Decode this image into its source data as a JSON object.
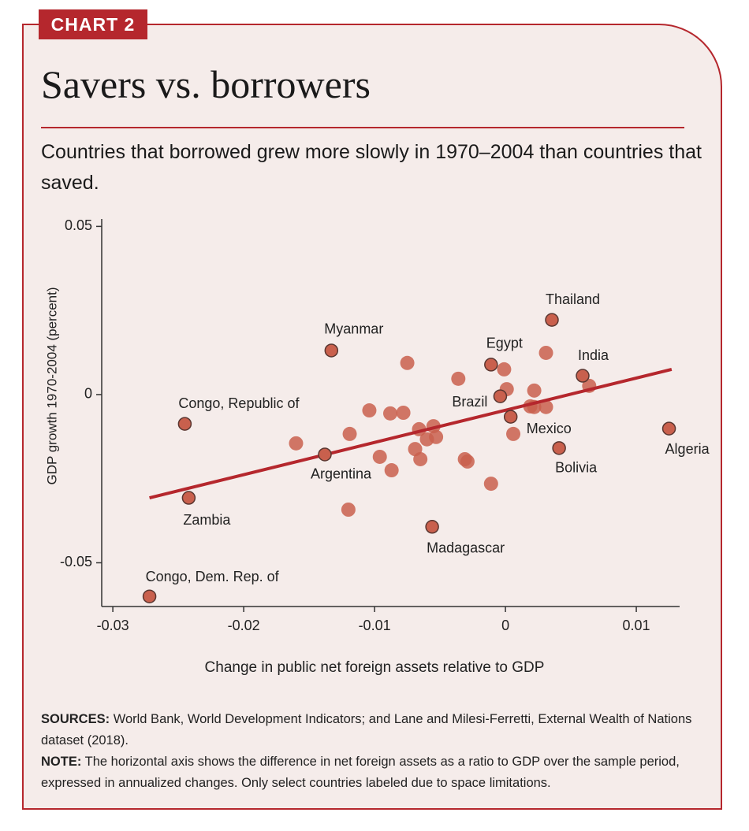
{
  "badge": "CHART 2",
  "chart_data": {
    "type": "scatter",
    "title": "Savers vs. borrowers",
    "subtitle": "Countries that borrowed grew more slowly in 1970–2004 than countries that saved.",
    "xlabel": "Change in public net foreign assets relative to GDP",
    "ylabel": "GDP growth 1970-2004 (percent)",
    "x": [
      0.00355,
      -0.0133,
      -0.0011,
      0.0059,
      -0.0004,
      -0.0245,
      0.0004,
      0.0125,
      0.0041,
      -0.0138,
      -0.0242,
      -0.0056,
      -0.0272,
      -0.0075,
      -0.0036,
      0.0031,
      -0.0001,
      0.0001,
      0.0022,
      0.0064,
      -0.0104,
      -0.0088,
      -0.0078,
      -0.0119,
      -0.016,
      -0.0066,
      -0.0055,
      -0.0053,
      -0.006,
      -0.0069,
      -0.0065,
      -0.0096,
      -0.0087,
      -0.0031,
      -0.0029,
      -0.0011,
      0.0006,
      0.0019,
      0.0022,
      0.0031,
      -0.012
    ],
    "y": [
      0.0222,
      0.0131,
      0.0089,
      0.0056,
      -0.0005,
      -0.0087,
      -0.0066,
      -0.0101,
      -0.0159,
      -0.0178,
      -0.0307,
      -0.0393,
      -0.06,
      0.0094,
      0.0047,
      0.0124,
      0.0075,
      0.0016,
      0.0012,
      0.0026,
      -0.0047,
      -0.0056,
      -0.0054,
      -0.0117,
      -0.0145,
      -0.0103,
      -0.0094,
      -0.0126,
      -0.0133,
      -0.0162,
      -0.0192,
      -0.0185,
      -0.0225,
      -0.0192,
      -0.0199,
      -0.0265,
      -0.0117,
      -0.0035,
      -0.0037,
      -0.0037,
      -0.0342
    ],
    "point_labels": [
      "Thailand",
      "Myanmar",
      "Egypt",
      "India",
      "Brazil",
      "Congo, Republic of",
      "Mexico",
      "Algeria",
      "Bolivia",
      "Argentina",
      "Zambia",
      "Madagascar",
      "Congo, Dem. Rep. of",
      null,
      null,
      null,
      null,
      null,
      null,
      null,
      null,
      null,
      null,
      null,
      null,
      null,
      null,
      null,
      null,
      null,
      null,
      null,
      null,
      null,
      null,
      null,
      null,
      null,
      null,
      null,
      null
    ],
    "color": "#c9604d",
    "edge_color": "#5a3630",
    "trendline": {
      "x": [
        -0.0272,
        0.0127
      ],
      "y": [
        -0.0307,
        0.0075
      ],
      "color": "#b5272d"
    },
    "xlim": [
      -0.03085,
      0.01331
    ],
    "xticks": [
      -0.03,
      -0.02,
      -0.01,
      0,
      0.01
    ],
    "ylim": [
      -0.063,
      0.0522
    ],
    "yticks": [
      0.05,
      0,
      -0.05
    ]
  },
  "notes": [
    {
      "label": "SOURCES:",
      "text": "World Bank, World Development Indicators; and Lane and Milesi-Ferretti, External Wealth of Nations dataset (2018)."
    },
    {
      "label": "NOTE:",
      "text": "The horizontal axis shows the difference in net foreign assets as a ratio to GDP over the sample period, expressed in annualized changes. Only select countries labeled due to space limitations."
    }
  ]
}
